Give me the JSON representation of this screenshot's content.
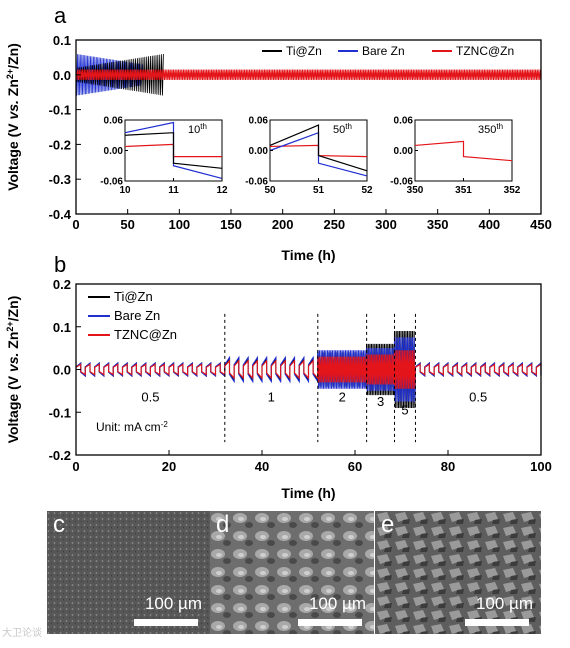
{
  "colors": {
    "ti": "#000000",
    "bare": "#1f2fd1",
    "tznc": "#e3151a"
  },
  "panel_a": {
    "letter": "a"
  },
  "panel_b": {
    "letter": "b"
  },
  "panel_c": {
    "letter": "c",
    "scale": "100 µm"
  },
  "panel_d": {
    "letter": "d",
    "scale": "100 µm"
  },
  "panel_e": {
    "letter": "e",
    "scale": "100 µm"
  },
  "watermark": "大卫论谈",
  "chart_data": [
    {
      "type": "line",
      "panel": "a",
      "xlabel": "Time (h)",
      "ylabel": "Voltage (V vs. Zn2+/Zn)",
      "xlim": [
        0,
        450
      ],
      "ylim": [
        -0.4,
        0.1
      ],
      "xticks": [
        0,
        50,
        100,
        150,
        200,
        250,
        300,
        350,
        400,
        450
      ],
      "yticks": [
        "0.1",
        "0.0",
        "-0.1",
        "-0.2",
        "-0.3",
        "-0.4"
      ],
      "legend": [
        "Ti@Zn",
        "Bare Zn",
        "TZNC@Zn"
      ],
      "legend_position": "top-right",
      "series": [
        {
          "name": "Ti@Zn",
          "x_end": 85,
          "amplitude_start": 0.02,
          "amplitude_end": 0.06
        },
        {
          "name": "Bare Zn",
          "x_end": 65,
          "amplitude_start": 0.06,
          "amplitude_end": 0.03
        },
        {
          "name": "TZNC@Zn",
          "x_end": 450,
          "amplitude": 0.015
        }
      ],
      "insets": [
        {
          "label": "10",
          "sup": "th",
          "xlim": [
            10,
            12
          ],
          "xticks": [
            "10",
            "11",
            "12"
          ],
          "ylim": [
            -0.06,
            0.06
          ],
          "yticks": [
            "0.06",
            "0.00",
            "-0.06"
          ],
          "ti": [
            0.03,
            0.035,
            -0.025,
            -0.035
          ],
          "bare": [
            0.035,
            0.055,
            -0.03,
            -0.055
          ],
          "tznc": [
            0.008,
            0.012,
            -0.012,
            -0.012
          ]
        },
        {
          "label": "50",
          "sup": "th",
          "xlim": [
            50,
            52
          ],
          "xticks": [
            "50",
            "51",
            "52"
          ],
          "ylim": [
            -0.06,
            0.06
          ],
          "yticks": [
            "0.06",
            "0.00",
            "-0.06"
          ],
          "ti": [
            0.01,
            0.05,
            -0.01,
            -0.04
          ],
          "bare": [
            0.0,
            0.035,
            -0.025,
            -0.05
          ],
          "tznc": [
            0.008,
            0.01,
            -0.01,
            -0.012
          ]
        },
        {
          "label": "350",
          "sup": "th",
          "xlim": [
            350,
            352
          ],
          "xticks": [
            "350",
            "351",
            "352"
          ],
          "ylim": [
            -0.06,
            0.06
          ],
          "yticks": [
            "0.06",
            "0.00",
            "-0.06"
          ],
          "tznc": [
            0.01,
            0.018,
            -0.012,
            -0.02
          ]
        }
      ]
    },
    {
      "type": "line",
      "panel": "b",
      "xlabel": "Time (h)",
      "ylabel": "Voltage (V vs. Zn2+/Zn)",
      "xlim": [
        0,
        100
      ],
      "ylim": [
        -0.2,
        0.2
      ],
      "xticks": [
        0,
        20,
        40,
        60,
        80,
        100
      ],
      "yticks": [
        "0.2",
        "0.1",
        "0.0",
        "-0.1",
        "-0.2"
      ],
      "legend": [
        "Ti@Zn",
        "Bare Zn",
        "TZNC@Zn"
      ],
      "legend_position": "top-left",
      "unit_text": "Unit: mA cm",
      "unit_sup": "-2",
      "segments": [
        {
          "label": "0.5",
          "x_start": 0,
          "x_end": 32,
          "ti": 0.015,
          "bare": 0.015,
          "tznc": 0.012
        },
        {
          "label": "1",
          "x_start": 32,
          "x_end": 52,
          "ti": 0.025,
          "bare": 0.028,
          "tznc": 0.02
        },
        {
          "label": "2",
          "x_start": 52,
          "x_end": 62.5,
          "ti": 0.04,
          "bare": 0.045,
          "tznc": 0.03
        },
        {
          "label": "3",
          "x_start": 62.5,
          "x_end": 68.5,
          "ti": 0.06,
          "bare": 0.05,
          "tznc": 0.035
        },
        {
          "label": "5",
          "x_start": 68.5,
          "x_end": 73,
          "ti": 0.09,
          "bare": 0.075,
          "tznc": 0.045
        },
        {
          "label": "0.5",
          "x_start": 73,
          "x_end": 100,
          "ti": 0.015,
          "bare": 0.015,
          "tznc": 0.012
        }
      ]
    }
  ]
}
